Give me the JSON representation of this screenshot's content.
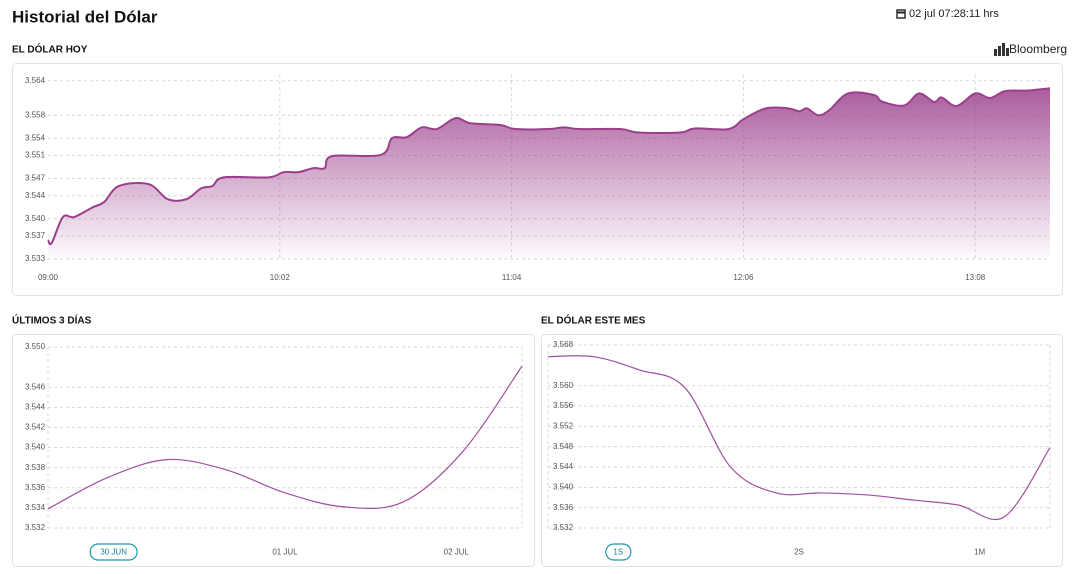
{
  "header": {
    "title": "Historial del Dólar",
    "timestamp": "02 jul 07:28:11 hrs",
    "source": "Bloomberg"
  },
  "chart_data": [
    {
      "type": "area",
      "title": "EL DÓLAR HOY",
      "color": "#9b3f8c",
      "grid": true,
      "x": [
        "09:00",
        "09:01",
        "09:04",
        "09:07",
        "09:12",
        "09:15",
        "09:19",
        "09:27",
        "09:32",
        "09:37",
        "09:41",
        "09:44",
        "09:47",
        "09:59",
        "10:03",
        "10:07",
        "10:11",
        "10:14",
        "10:16",
        "10:29",
        "10:32",
        "10:36",
        "10:40",
        "10:44",
        "10:49",
        "10:53",
        "11:01",
        "11:05",
        "11:14",
        "11:18",
        "11:22",
        "11:33",
        "11:38",
        "11:49",
        "11:53",
        "12:02",
        "12:06",
        "12:12",
        "12:18",
        "12:21",
        "12:23",
        "12:26",
        "12:29",
        "12:34",
        "12:41",
        "12:43",
        "12:49",
        "12:53",
        "12:57",
        "12:59",
        "13:03",
        "13:08",
        "13:12",
        "13:16",
        "13:22",
        "13:28"
      ],
      "values": [
        3.5363,
        3.5358,
        3.5403,
        3.5403,
        3.542,
        3.5429,
        3.5457,
        3.546,
        3.5434,
        3.5434,
        3.5453,
        3.5457,
        3.5472,
        3.5472,
        3.5481,
        3.5481,
        3.5488,
        3.5488,
        3.5509,
        3.5511,
        3.554,
        3.5542,
        3.5559,
        3.5556,
        3.5575,
        3.5566,
        3.5563,
        3.5556,
        3.5556,
        3.5559,
        3.5556,
        3.5556,
        3.555,
        3.555,
        3.5557,
        3.5556,
        3.5573,
        3.5592,
        3.5592,
        3.5587,
        3.5592,
        3.558,
        3.5589,
        3.5618,
        3.5615,
        3.5604,
        3.5597,
        3.5618,
        3.5603,
        3.5611,
        3.5596,
        3.5618,
        3.561,
        3.5622,
        3.5623,
        3.5627
      ],
      "xlim": [
        "09:00",
        "13:28"
      ],
      "xticks": [
        "09:00",
        "10:02",
        "11:04",
        "12:06",
        "13:08"
      ],
      "ylim": [
        3.533,
        3.565
      ],
      "yticks": [
        3.533,
        3.537,
        {
          "value": 3.54,
          "label": "3.540"
        },
        3.544,
        3.547,
        3.551,
        3.554,
        3.558,
        3.564
      ]
    },
    {
      "type": "line",
      "title": "ÚLTIMOS 3 DÍAS",
      "color": "#a24fa0",
      "grid": true,
      "values": [
        3.5339,
        3.537,
        3.5388,
        3.5378,
        3.5355,
        3.5341,
        3.5346,
        3.5396,
        3.5481
      ],
      "ylim": [
        3.532,
        3.55
      ],
      "yticks": [
        3.532,
        3.534,
        3.536,
        3.538,
        {
          "value": 3.54,
          "label": "3.540"
        },
        3.542,
        3.544,
        3.546,
        {
          "value": 3.55,
          "label": "3.550"
        }
      ],
      "ranges": [
        "30 JUN",
        "01 JUL",
        "02 JUL"
      ],
      "selected_range": "30 JUN"
    },
    {
      "type": "line",
      "title": "EL DÓLAR ESTE MES",
      "color": "#a24fa0",
      "grid": true,
      "values": [
        3.5657,
        3.5657,
        3.5631,
        3.5596,
        3.544,
        3.5389,
        3.5389,
        3.5385,
        3.5375,
        3.5365,
        3.5342,
        3.5478
      ],
      "ylim": [
        3.532,
        3.568
      ],
      "yticks": [
        3.532,
        3.536,
        {
          "value": 3.54,
          "label": "3.540"
        },
        3.544,
        3.548,
        3.552,
        3.556,
        {
          "value": 3.56,
          "label": "3.560"
        },
        3.568
      ],
      "ranges": [
        "1S",
        "2S",
        "1M"
      ],
      "selected_range": "1S"
    }
  ]
}
